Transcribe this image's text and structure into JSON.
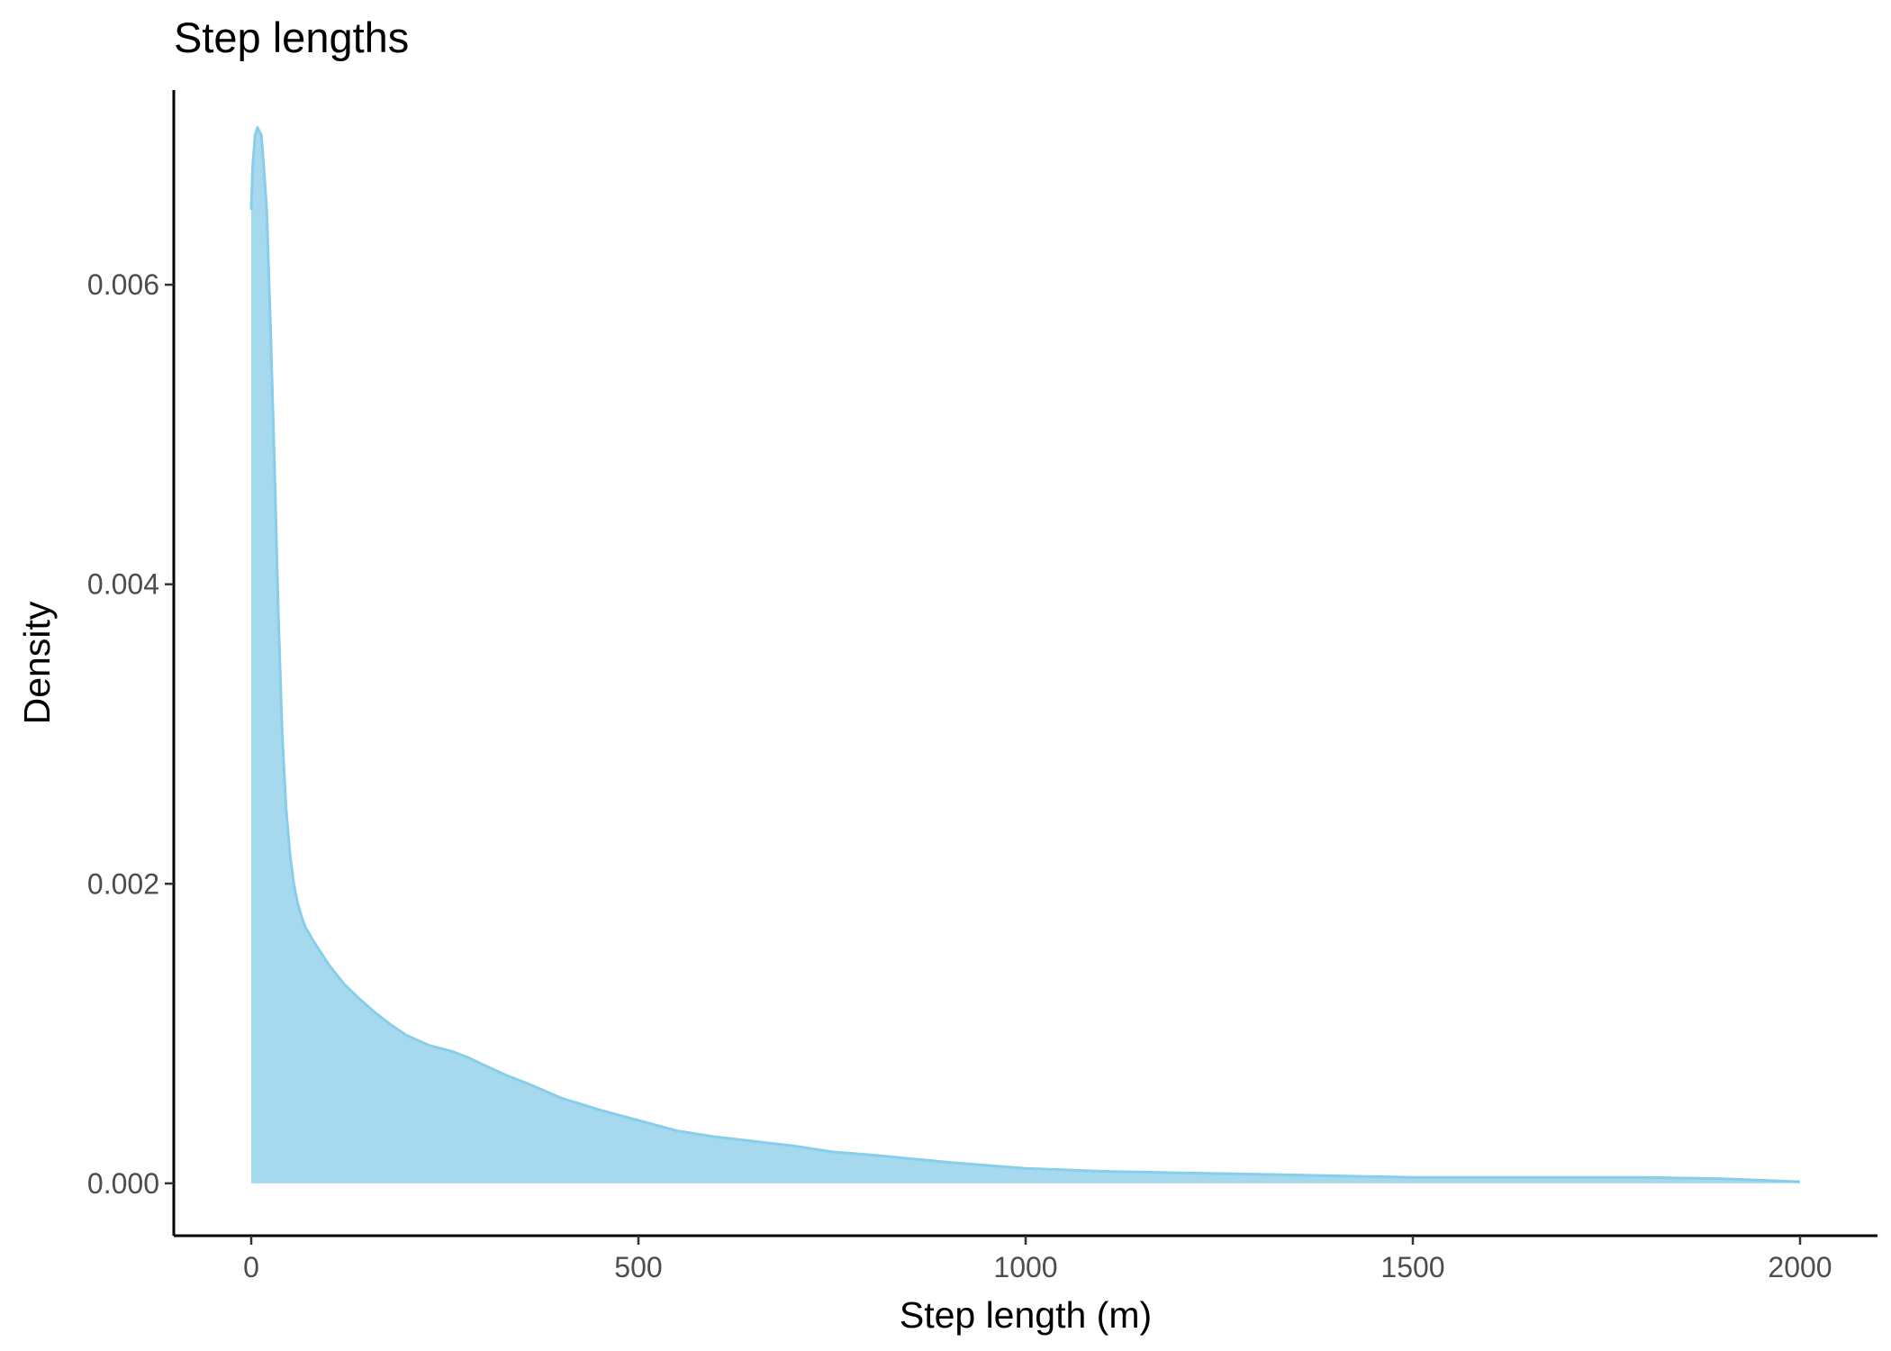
{
  "chart_data": {
    "type": "area",
    "title": "Step lengths",
    "xlabel": "Step length (m)",
    "ylabel": "Density",
    "xlim": [
      -100,
      2100
    ],
    "ylim": [
      -0.00035,
      0.0073
    ],
    "x_ticks": [
      0,
      500,
      1000,
      1500,
      2000
    ],
    "x_tick_labels": [
      "0",
      "500",
      "1000",
      "1500",
      "2000"
    ],
    "y_ticks": [
      0,
      0.002,
      0.004,
      0.006
    ],
    "y_tick_labels": [
      "0.000",
      "0.002",
      "0.004",
      "0.006"
    ],
    "grid": false,
    "legend": "none",
    "fill_color": "#a6d9ee",
    "line_color": "#87ceeb",
    "series": [
      {
        "x": [
          0,
          2,
          5,
          8,
          10,
          13,
          16,
          20,
          25,
          30,
          35,
          40,
          45,
          50,
          55,
          60,
          65,
          70,
          80,
          90,
          100,
          120,
          140,
          160,
          180,
          200,
          230,
          260,
          280,
          300,
          330,
          360,
          400,
          450,
          500,
          550,
          600,
          650,
          700,
          750,
          800,
          900,
          1000,
          1100,
          1200,
          1300,
          1400,
          1500,
          1600,
          1700,
          1800,
          1900,
          2000
        ],
        "y": [
          0.0065,
          0.0068,
          0.007,
          0.00705,
          0.00703,
          0.007,
          0.0068,
          0.0065,
          0.0057,
          0.0048,
          0.0038,
          0.003,
          0.0025,
          0.0022,
          0.002,
          0.00187,
          0.00178,
          0.00171,
          0.00162,
          0.00154,
          0.00146,
          0.00133,
          0.00123,
          0.00114,
          0.00106,
          0.00099,
          0.00092,
          0.00088,
          0.00084,
          0.00079,
          0.00072,
          0.00066,
          0.00057,
          0.00049,
          0.00042,
          0.00035,
          0.00031,
          0.00028,
          0.00025,
          0.00021,
          0.00019,
          0.00014,
          0.0001,
          8e-05,
          7e-05,
          6e-05,
          5e-05,
          4e-05,
          4e-05,
          4e-05,
          4e-05,
          3e-05,
          1e-05
        ]
      }
    ]
  }
}
